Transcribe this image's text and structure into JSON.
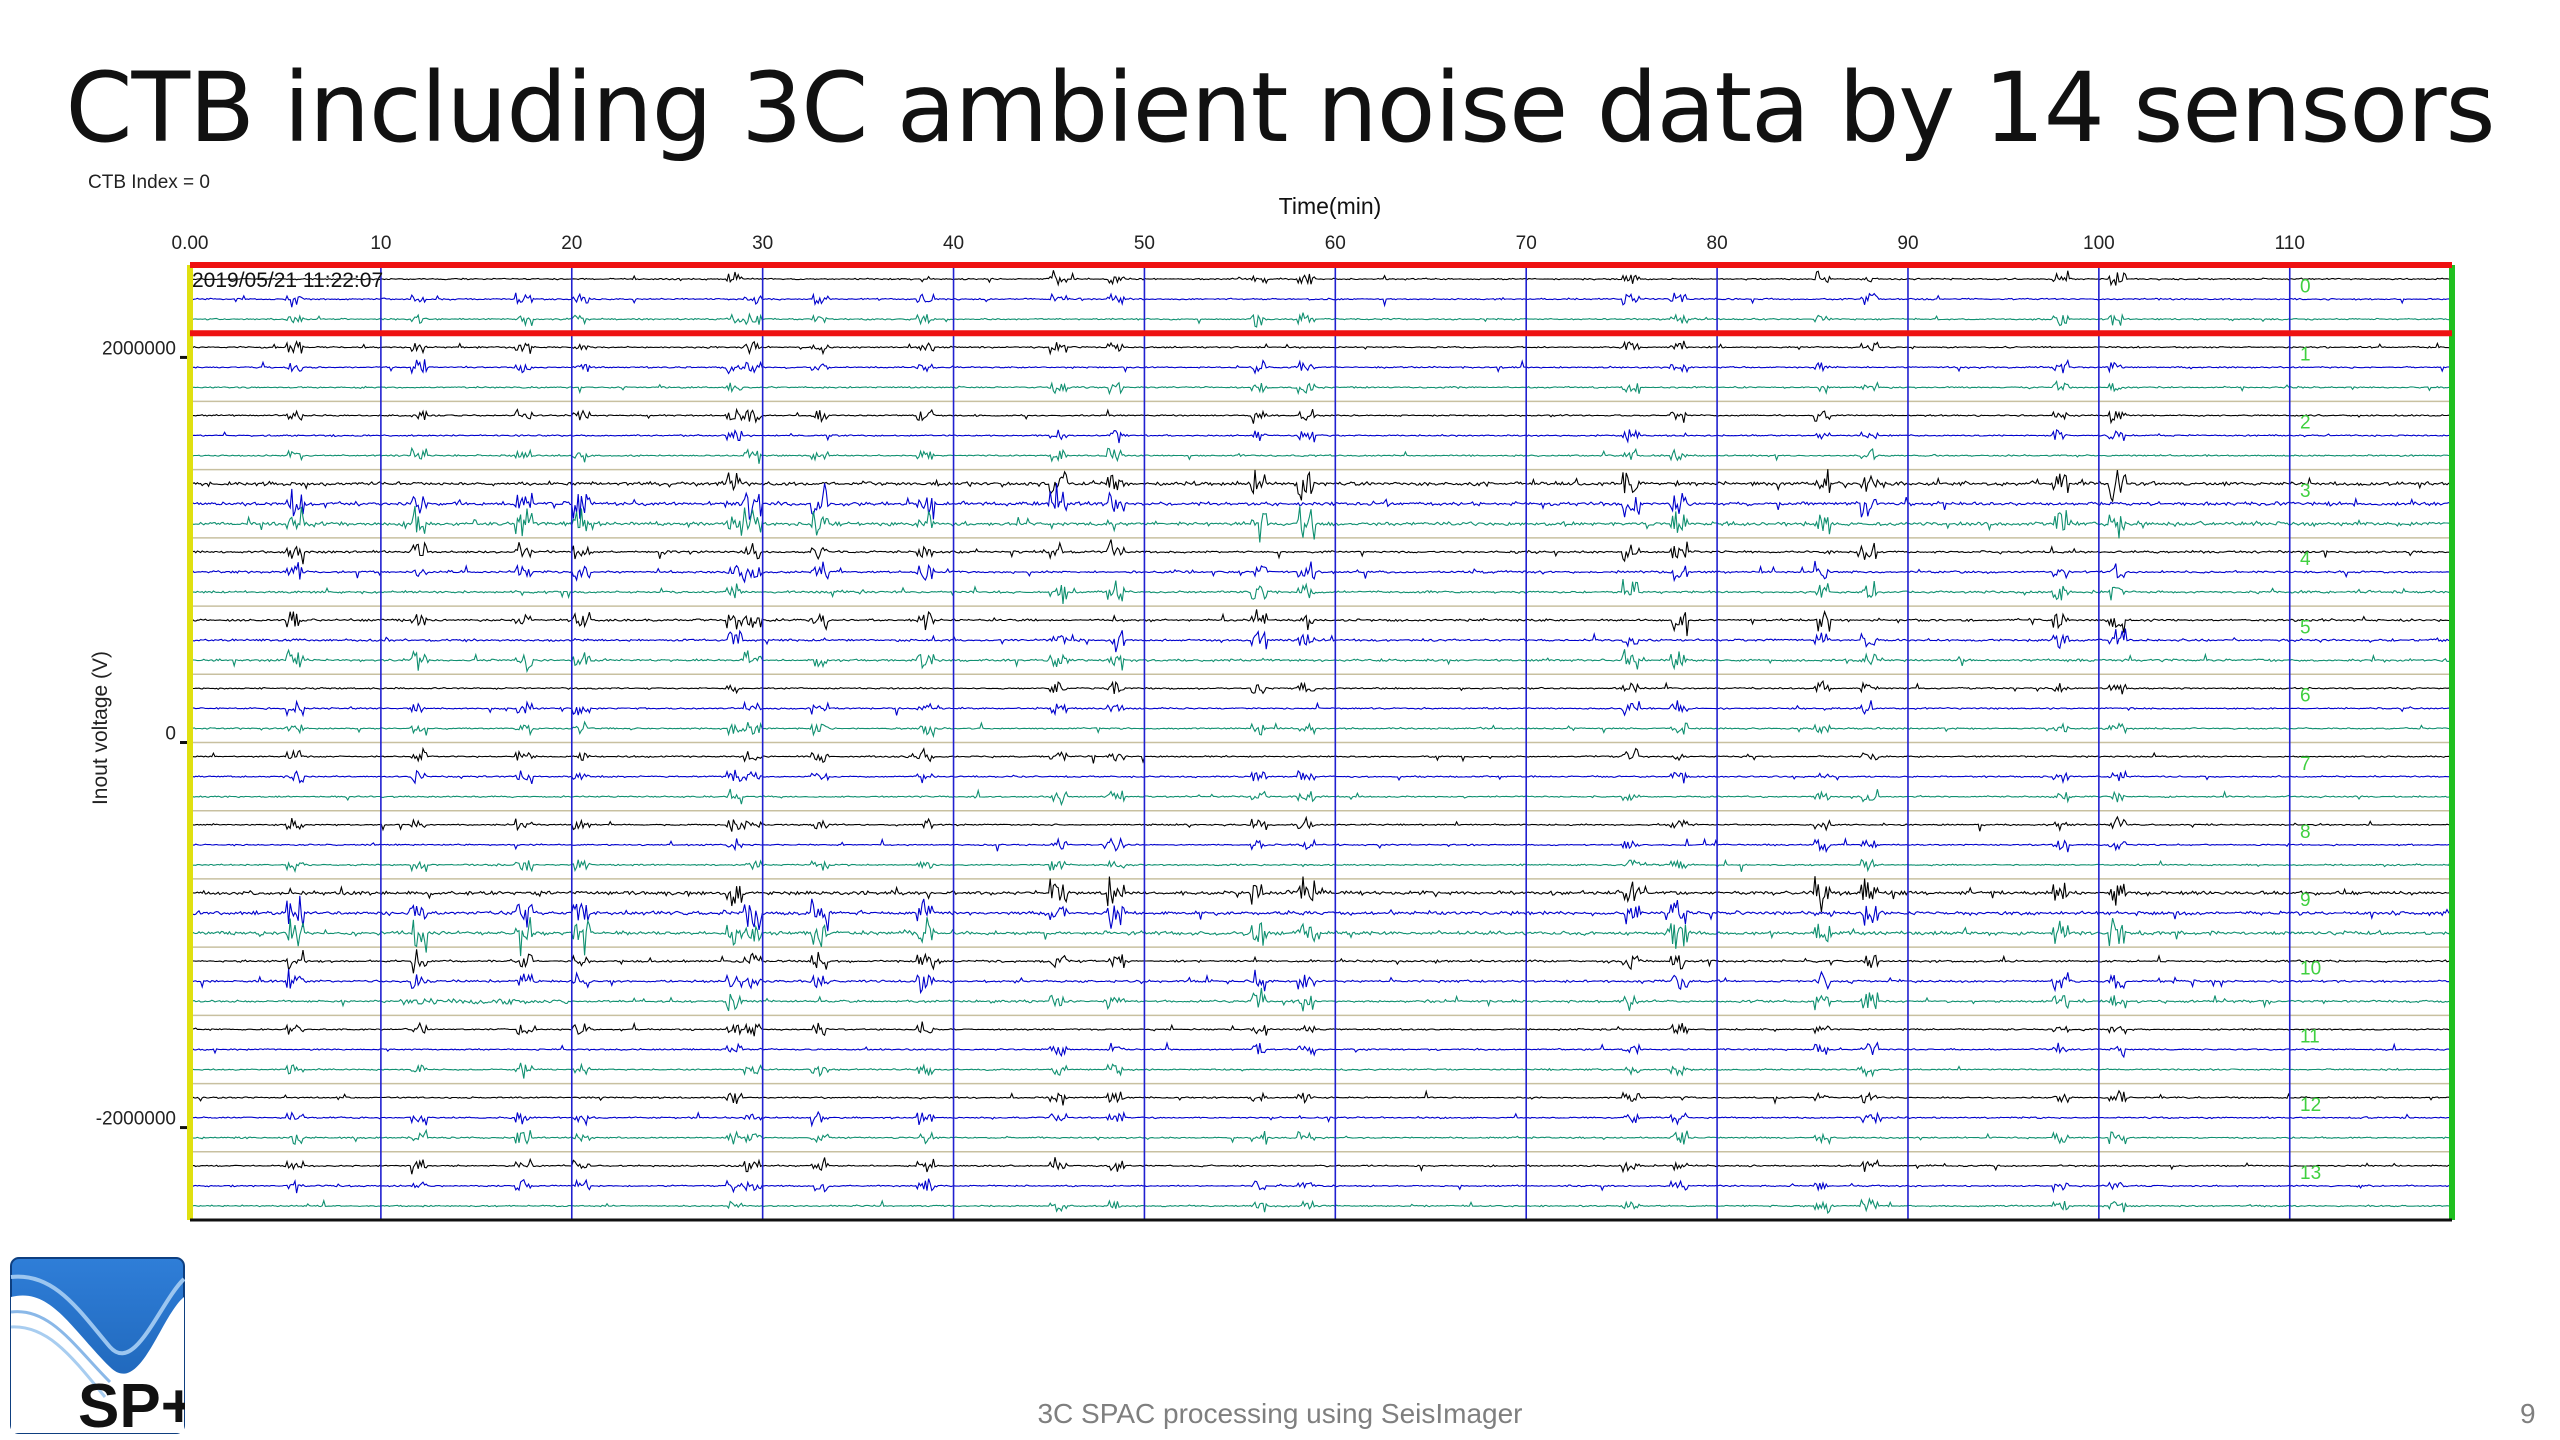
{
  "slide": {
    "title": "CTB including 3C ambient noise data by 14 sensors",
    "footer": "3C SPAC processing using SeisImager",
    "page_number": "9",
    "logo_text": "SP+"
  },
  "chart_data": {
    "type": "line",
    "title": "",
    "top_label": "CTB Index = 0",
    "timestamp": "2019/05/21 11:22:07",
    "xlabel": "Time(min)",
    "ylabel": "Inout voltage (V)",
    "xlim": [
      0,
      118.5
    ],
    "xticks": [
      0,
      10,
      20,
      30,
      40,
      50,
      60,
      70,
      80,
      90,
      100,
      110
    ],
    "xtick_labels": [
      "0.00",
      "10",
      "20",
      "30",
      "40",
      "50",
      "60",
      "70",
      "80",
      "90",
      "100",
      "110"
    ],
    "ylim": [
      -2480000,
      2480000
    ],
    "yticks": [
      2000000,
      0,
      -2000000
    ],
    "ytick_labels": [
      "2000000",
      "0",
      "-2000000"
    ],
    "channel_labels": [
      "0",
      "1",
      "2",
      "3",
      "4",
      "5",
      "6",
      "7",
      "8",
      "9",
      "10",
      "11",
      "12",
      "13"
    ],
    "component_colors": [
      "#000000",
      "#0000cc",
      "#109070"
    ],
    "colors": {
      "grid": "#2020d0",
      "sensor_separator": "#c8c0a0",
      "selection_box": "#ee1111",
      "start_marker": "#e0e010",
      "end_marker": "#20c020",
      "channel_label": "#40d040"
    },
    "selected_sensor": 0,
    "spike_times": [
      5.5,
      12,
      17.5,
      20.5,
      28.5,
      29.5,
      33,
      38.5,
      45.5,
      48.5,
      56,
      58.5,
      75.5,
      78,
      85.5,
      88,
      98,
      101
    ]
  }
}
